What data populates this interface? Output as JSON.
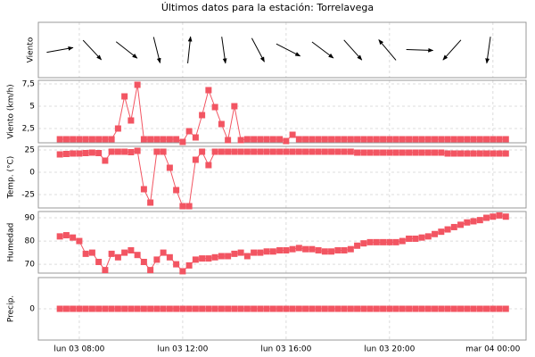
{
  "title": "Últimos datos para la estación: Torrelavega",
  "chart_data": [
    {
      "type": "arrows",
      "y_label": "Viento",
      "color": "#000000",
      "x": [
        "lun 03 07:15",
        "lun 03 08:30",
        "lun 03 09:50",
        "lun 03 11:00",
        "lun 03 12:15",
        "lun 03 13:35",
        "lun 03 14:55",
        "lun 03 16:05",
        "lun 03 17:25",
        "lun 03 18:35",
        "lun 03 19:55",
        "lun 03 21:10",
        "lun 03 22:25",
        "lun 03 23:50"
      ],
      "values": [
        80,
        137,
        128,
        166,
        6,
        172,
        152,
        117,
        127,
        138,
        320,
        92,
        222,
        188
      ],
      "xlim": [
        "lun 03 06:25",
        "mar 04 01:17"
      ],
      "grid": true
    },
    {
      "type": "line",
      "y_label": "Viento (km/h)",
      "color": "#f25562",
      "x": [
        "lun 03 07:15",
        "lun 03 07:30",
        "lun 03 07:45",
        "lun 03 08:00",
        "lun 03 08:15",
        "lun 03 08:30",
        "lun 03 08:45",
        "lun 03 09:00",
        "lun 03 09:15",
        "lun 03 09:30",
        "lun 03 09:45",
        "lun 03 10:00",
        "lun 03 10:15",
        "lun 03 10:30",
        "lun 03 10:45",
        "lun 03 11:00",
        "lun 03 11:15",
        "lun 03 11:30",
        "lun 03 11:45",
        "lun 03 12:00",
        "lun 03 12:15",
        "lun 03 12:30",
        "lun 03 12:45",
        "lun 03 13:00",
        "lun 03 13:15",
        "lun 03 13:30",
        "lun 03 13:45",
        "lun 03 14:00",
        "lun 03 14:15",
        "lun 03 14:30",
        "lun 03 14:45",
        "lun 03 15:00",
        "lun 03 15:15",
        "lun 03 15:30",
        "lun 03 15:45",
        "lun 03 16:00",
        "lun 03 16:15",
        "lun 03 16:30",
        "lun 03 16:45",
        "lun 03 17:00",
        "lun 03 17:15",
        "lun 03 17:30",
        "lun 03 17:45",
        "lun 03 18:00",
        "lun 03 18:15",
        "lun 03 18:30",
        "lun 03 18:45",
        "lun 03 19:00",
        "lun 03 19:15",
        "lun 03 19:30",
        "lun 03 19:45",
        "lun 03 20:00",
        "lun 03 20:15",
        "lun 03 20:30",
        "lun 03 20:45",
        "lun 03 21:00",
        "lun 03 21:15",
        "lun 03 21:30",
        "lun 03 21:45",
        "lun 03 22:00",
        "lun 03 22:15",
        "lun 03 22:30",
        "lun 03 22:45",
        "lun 03 23:00",
        "lun 03 23:15",
        "lun 03 23:30",
        "lun 03 23:45",
        "mar 04 00:00",
        "mar 04 00:15",
        "mar 04 00:30"
      ],
      "values": [
        1.3,
        1.3,
        1.3,
        1.3,
        1.3,
        1.3,
        1.3,
        1.3,
        1.3,
        2.5,
        6.1,
        3.4,
        7.4,
        1.3,
        1.3,
        1.3,
        1.3,
        1.3,
        1.3,
        1.0,
        2.2,
        1.5,
        4.0,
        6.8,
        4.9,
        3.0,
        1.2,
        5.0,
        1.2,
        1.3,
        1.3,
        1.3,
        1.3,
        1.3,
        1.3,
        1.1,
        1.8,
        1.3,
        1.3,
        1.3,
        1.3,
        1.3,
        1.3,
        1.3,
        1.3,
        1.3,
        1.3,
        1.3,
        1.3,
        1.3,
        1.3,
        1.3,
        1.3,
        1.3,
        1.3,
        1.3,
        1.3,
        1.3,
        1.3,
        1.3,
        1.3,
        1.3,
        1.3,
        1.3,
        1.3,
        1.3,
        1.3,
        1.3,
        1.3,
        1.3
      ],
      "xlim": [
        "lun 03 06:25",
        "mar 04 01:17"
      ],
      "ylim": [
        0.9,
        7.9
      ],
      "yticks": [
        {
          "value": 7.5,
          "label": "7,5"
        },
        5,
        {
          "value": 2.5,
          "label": "2,5"
        }
      ],
      "grid": true
    },
    {
      "type": "line",
      "y_label": "Temp. (°C)",
      "color": "#f25562",
      "x": [
        "lun 03 07:15",
        "lun 03 07:30",
        "lun 03 07:45",
        "lun 03 08:00",
        "lun 03 08:15",
        "lun 03 08:30",
        "lun 03 08:45",
        "lun 03 09:00",
        "lun 03 09:15",
        "lun 03 09:30",
        "lun 03 09:45",
        "lun 03 10:00",
        "lun 03 10:15",
        "lun 03 10:30",
        "lun 03 10:45",
        "lun 03 11:00",
        "lun 03 11:15",
        "lun 03 11:30",
        "lun 03 11:45",
        "lun 03 12:00",
        "lun 03 12:15",
        "lun 03 12:30",
        "lun 03 12:45",
        "lun 03 13:00",
        "lun 03 13:15",
        "lun 03 13:30",
        "lun 03 13:45",
        "lun 03 14:00",
        "lun 03 14:15",
        "lun 03 14:30",
        "lun 03 14:45",
        "lun 03 15:00",
        "lun 03 15:15",
        "lun 03 15:30",
        "lun 03 15:45",
        "lun 03 16:00",
        "lun 03 16:15",
        "lun 03 16:30",
        "lun 03 16:45",
        "lun 03 17:00",
        "lun 03 17:15",
        "lun 03 17:30",
        "lun 03 17:45",
        "lun 03 18:00",
        "lun 03 18:15",
        "lun 03 18:30",
        "lun 03 18:45",
        "lun 03 19:00",
        "lun 03 19:15",
        "lun 03 19:30",
        "lun 03 19:45",
        "lun 03 20:00",
        "lun 03 20:15",
        "lun 03 20:30",
        "lun 03 20:45",
        "lun 03 21:00",
        "lun 03 21:15",
        "lun 03 21:30",
        "lun 03 21:45",
        "lun 03 22:00",
        "lun 03 22:15",
        "lun 03 22:30",
        "lun 03 22:45",
        "lun 03 23:00",
        "lun 03 23:15",
        "lun 03 23:30",
        "lun 03 23:45",
        "mar 04 00:00",
        "mar 04 00:15",
        "mar 04 00:30"
      ],
      "values": [
        20,
        20.5,
        21,
        21,
        21.5,
        22,
        21.5,
        13,
        23,
        23,
        23,
        22.5,
        24,
        -19,
        -34,
        23,
        23,
        5,
        -20,
        -38,
        -38,
        14,
        23,
        8,
        23,
        23,
        23,
        23,
        23,
        23,
        23,
        23,
        23,
        23,
        23,
        23,
        23,
        23,
        23,
        23,
        23,
        23,
        23,
        23,
        23,
        23,
        22,
        22,
        22,
        22,
        22,
        22,
        22,
        22,
        22,
        22,
        22,
        22,
        22,
        22,
        21,
        21,
        21,
        21,
        21,
        21,
        21,
        21,
        21,
        21
      ],
      "xlim": [
        "lun 03 06:25",
        "mar 04 01:17"
      ],
      "ylim": [
        -40,
        29
      ],
      "yticks": [
        25,
        0,
        -25
      ],
      "grid": true
    },
    {
      "type": "line",
      "y_label": "Humedad",
      "color": "#f25562",
      "x": [
        "lun 03 07:15",
        "lun 03 07:30",
        "lun 03 07:45",
        "lun 03 08:00",
        "lun 03 08:15",
        "lun 03 08:30",
        "lun 03 08:45",
        "lun 03 09:00",
        "lun 03 09:15",
        "lun 03 09:30",
        "lun 03 09:45",
        "lun 03 10:00",
        "lun 03 10:15",
        "lun 03 10:30",
        "lun 03 10:45",
        "lun 03 11:00",
        "lun 03 11:15",
        "lun 03 11:30",
        "lun 03 11:45",
        "lun 03 12:00",
        "lun 03 12:15",
        "lun 03 12:30",
        "lun 03 12:45",
        "lun 03 13:00",
        "lun 03 13:15",
        "lun 03 13:30",
        "lun 03 13:45",
        "lun 03 14:00",
        "lun 03 14:15",
        "lun 03 14:30",
        "lun 03 14:45",
        "lun 03 15:00",
        "lun 03 15:15",
        "lun 03 15:30",
        "lun 03 15:45",
        "lun 03 16:00",
        "lun 03 16:15",
        "lun 03 16:30",
        "lun 03 16:45",
        "lun 03 17:00",
        "lun 03 17:15",
        "lun 03 17:30",
        "lun 03 17:45",
        "lun 03 18:00",
        "lun 03 18:15",
        "lun 03 18:30",
        "lun 03 18:45",
        "lun 03 19:00",
        "lun 03 19:15",
        "lun 03 19:30",
        "lun 03 19:45",
        "lun 03 20:00",
        "lun 03 20:15",
        "lun 03 20:30",
        "lun 03 20:45",
        "lun 03 21:00",
        "lun 03 21:15",
        "lun 03 21:30",
        "lun 03 21:45",
        "lun 03 22:00",
        "lun 03 22:15",
        "lun 03 22:30",
        "lun 03 22:45",
        "lun 03 23:00",
        "lun 03 23:15",
        "lun 03 23:30",
        "lun 03 23:45",
        "mar 04 00:00",
        "mar 04 00:15",
        "mar 04 00:30"
      ],
      "values": [
        82,
        82.5,
        81.5,
        80,
        74.5,
        75,
        71,
        67.5,
        74.5,
        73,
        75,
        76,
        74,
        71,
        67.5,
        72,
        75,
        73,
        70,
        67,
        69.5,
        72,
        72.5,
        72.5,
        73,
        73.5,
        73.5,
        74.5,
        75,
        73.5,
        75,
        75,
        75.5,
        75.5,
        76,
        76,
        76.5,
        77,
        76.5,
        76.5,
        76,
        75.5,
        75.5,
        76,
        76,
        76.5,
        78,
        79,
        79.5,
        79.5,
        79.5,
        79.5,
        79.5,
        80,
        81,
        81,
        81.5,
        82,
        83,
        84,
        85,
        86,
        87,
        88,
        88.5,
        89,
        90,
        90.5,
        91,
        90.5
      ],
      "xlim": [
        "lun 03 06:25",
        "mar 04 01:17"
      ],
      "ylim": [
        66.2,
        92.7
      ],
      "yticks": [
        70,
        80,
        90
      ],
      "grid": true
    },
    {
      "type": "line",
      "y_label": "Precip.",
      "color": "#f25562",
      "x": [
        "lun 03 07:15",
        "lun 03 07:30",
        "lun 03 07:45",
        "lun 03 08:00",
        "lun 03 08:15",
        "lun 03 08:30",
        "lun 03 08:45",
        "lun 03 09:00",
        "lun 03 09:15",
        "lun 03 09:30",
        "lun 03 09:45",
        "lun 03 10:00",
        "lun 03 10:15",
        "lun 03 10:30",
        "lun 03 10:45",
        "lun 03 11:00",
        "lun 03 11:15",
        "lun 03 11:30",
        "lun 03 11:45",
        "lun 03 12:00",
        "lun 03 12:15",
        "lun 03 12:30",
        "lun 03 12:45",
        "lun 03 13:00",
        "lun 03 13:15",
        "lun 03 13:30",
        "lun 03 13:45",
        "lun 03 14:00",
        "lun 03 14:15",
        "lun 03 14:30",
        "lun 03 14:45",
        "lun 03 15:00",
        "lun 03 15:15",
        "lun 03 15:30",
        "lun 03 15:45",
        "lun 03 16:00",
        "lun 03 16:15",
        "lun 03 16:30",
        "lun 03 16:45",
        "lun 03 17:00",
        "lun 03 17:15",
        "lun 03 17:30",
        "lun 03 17:45",
        "lun 03 18:00",
        "lun 03 18:15",
        "lun 03 18:30",
        "lun 03 18:45",
        "lun 03 19:00",
        "lun 03 19:15",
        "lun 03 19:30",
        "lun 03 19:45",
        "lun 03 20:00",
        "lun 03 20:15",
        "lun 03 20:30",
        "lun 03 20:45",
        "lun 03 21:00",
        "lun 03 21:15",
        "lun 03 21:30",
        "lun 03 21:45",
        "lun 03 22:00",
        "lun 03 22:15",
        "lun 03 22:30",
        "lun 03 22:45",
        "lun 03 23:00",
        "lun 03 23:15",
        "lun 03 23:30",
        "lun 03 23:45",
        "mar 04 00:00",
        "mar 04 00:15",
        "mar 04 00:30"
      ],
      "values": [
        0,
        0,
        0,
        0,
        0,
        0,
        0,
        0,
        0,
        0,
        0,
        0,
        0,
        0,
        0,
        0,
        0,
        0,
        0,
        0,
        0,
        0,
        0,
        0,
        0,
        0,
        0,
        0,
        0,
        0,
        0,
        0,
        0,
        0,
        0,
        0,
        0,
        0,
        0,
        0,
        0,
        0,
        0,
        0,
        0,
        0,
        0,
        0,
        0,
        0,
        0,
        0,
        0,
        0,
        0,
        0,
        0,
        0,
        0,
        0,
        0,
        0,
        0,
        0,
        0,
        0,
        0,
        0,
        0,
        0
      ],
      "xlim": [
        "lun 03 06:25",
        "mar 04 01:17"
      ],
      "ylim": [
        -1,
        1
      ],
      "yticks": [
        0
      ],
      "xticks": [
        "lun 03 08:00",
        "lun 03 12:00",
        "lun 03 16:00",
        "lun 03 20:00",
        "mar 04 00:00"
      ],
      "grid": true
    }
  ]
}
